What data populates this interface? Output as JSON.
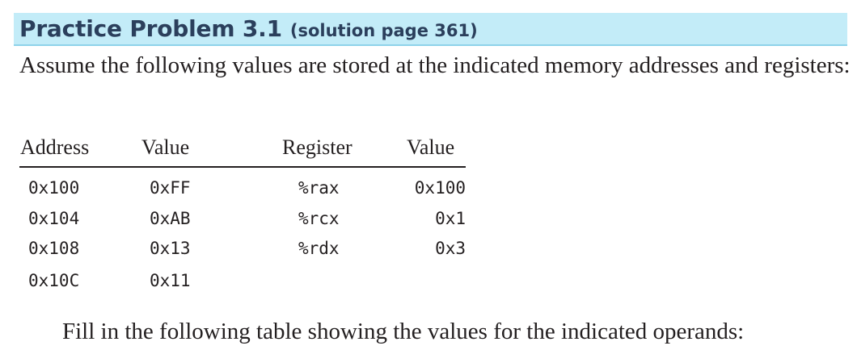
{
  "banner": {
    "title": "Practice Problem 3.1",
    "subtitle": "(solution page 361)",
    "background_color": "#c3ecf8",
    "title_color": "#2b3f5c"
  },
  "intro_text": "Assume the following values are stored at the indicated memory addresses and registers:",
  "table": {
    "headers": {
      "address": "Address",
      "value": "Value",
      "register": "Register",
      "register_value": "Value"
    },
    "memory_rows": [
      {
        "address": "0x100",
        "value": "0xFF"
      },
      {
        "address": "0x104",
        "value": "0xAB"
      },
      {
        "address": "0x108",
        "value": "0x13"
      },
      {
        "address": "0x10C",
        "value": "0x11"
      }
    ],
    "register_rows": [
      {
        "register": "%rax",
        "value": "0x100"
      },
      {
        "register": "%rcx",
        "value": "0x1"
      },
      {
        "register": "%rdx",
        "value": "0x3"
      }
    ]
  },
  "outro_text": "Fill in the following table showing the values for the indicated operands:"
}
